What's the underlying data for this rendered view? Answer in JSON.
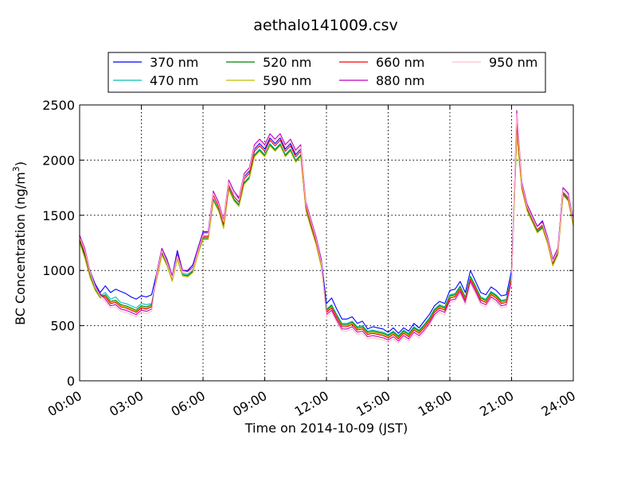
{
  "chart_data": {
    "type": "line",
    "title": "aethalo141009.csv",
    "xlabel": "Time on 2014-10-09 (JST)",
    "ylabel": "BC Concentration (ng/m",
    "ylabel_sup": "3",
    "ylabel_end": ")",
    "xlim": [
      0,
      24
    ],
    "ylim": [
      0,
      2500
    ],
    "x_ticks": [
      0,
      3,
      6,
      9,
      12,
      15,
      18,
      21,
      24
    ],
    "x_tick_labels": [
      "00:00",
      "03:00",
      "06:00",
      "09:00",
      "12:00",
      "15:00",
      "18:00",
      "21:00",
      "24:00"
    ],
    "y_ticks": [
      0,
      500,
      1000,
      1500,
      2000,
      2500
    ],
    "y_tick_labels": [
      "0",
      "500",
      "1000",
      "1500",
      "2000",
      "2500"
    ],
    "grid": true,
    "legend_position": "top-center",
    "x": [
      0.0,
      0.25,
      0.5,
      0.75,
      1.0,
      1.25,
      1.5,
      1.75,
      2.0,
      2.25,
      2.5,
      2.75,
      3.0,
      3.25,
      3.5,
      3.75,
      4.0,
      4.25,
      4.5,
      4.75,
      5.0,
      5.25,
      5.5,
      5.75,
      6.0,
      6.25,
      6.5,
      6.75,
      7.0,
      7.25,
      7.5,
      7.75,
      8.0,
      8.25,
      8.5,
      8.75,
      9.0,
      9.25,
      9.5,
      9.75,
      10.0,
      10.25,
      10.5,
      10.75,
      11.0,
      11.25,
      11.5,
      11.75,
      12.0,
      12.25,
      12.5,
      12.75,
      13.0,
      13.25,
      13.5,
      13.75,
      14.0,
      14.25,
      14.5,
      14.75,
      15.0,
      15.25,
      15.5,
      15.75,
      16.0,
      16.25,
      16.5,
      16.75,
      17.0,
      17.25,
      17.5,
      17.75,
      18.0,
      18.25,
      18.5,
      18.75,
      19.0,
      19.25,
      19.5,
      19.75,
      20.0,
      20.25,
      20.5,
      20.75,
      21.0,
      21.25,
      21.5,
      21.75,
      22.0,
      22.25,
      22.5,
      22.75,
      23.0,
      23.25,
      23.5,
      23.75,
      24.0
    ],
    "series": [
      {
        "name": "370 nm",
        "color": "#0000ff",
        "values": [
          1280,
          1150,
          1000,
          880,
          800,
          860,
          800,
          830,
          810,
          790,
          760,
          740,
          770,
          760,
          780,
          980,
          1200,
          1100,
          950,
          1180,
          1000,
          1000,
          1050,
          1200,
          1350,
          1350,
          1700,
          1600,
          1450,
          1800,
          1700,
          1650,
          1850,
          1900,
          2100,
          2150,
          2100,
          2200,
          2150,
          2200,
          2100,
          2150,
          2050,
          2100,
          1600,
          1450,
          1300,
          1100,
          700,
          750,
          650,
          560,
          560,
          580,
          520,
          540,
          470,
          490,
          480,
          470,
          440,
          480,
          430,
          480,
          450,
          520,
          480,
          540,
          600,
          680,
          720,
          700,
          820,
          830,
          900,
          800,
          1000,
          900,
          800,
          780,
          850,
          820,
          770,
          780,
          1000,
          2300,
          1800,
          1600,
          1500,
          1400,
          1450,
          1300,
          1100,
          1200,
          1750,
          1700,
          1450
        ]
      },
      {
        "name": "470 nm",
        "color": "#00bfbf",
        "values": [
          1260,
          1120,
          960,
          840,
          770,
          800,
          740,
          760,
          710,
          700,
          680,
          660,
          700,
          690,
          700,
          940,
          1160,
          1060,
          920,
          1120,
          970,
          960,
          1000,
          1160,
          1300,
          1300,
          1650,
          1560,
          1400,
          1750,
          1650,
          1600,
          1800,
          1850,
          2050,
          2100,
          2050,
          2150,
          2100,
          2150,
          2050,
          2100,
          2000,
          2050,
          1560,
          1400,
          1250,
          1050,
          650,
          690,
          600,
          520,
          520,
          540,
          490,
          500,
          450,
          460,
          450,
          440,
          420,
          450,
          410,
          460,
          430,
          490,
          460,
          510,
          570,
          650,
          690,
          670,
          780,
          790,
          860,
          760,
          950,
          860,
          760,
          740,
          810,
          780,
          730,
          740,
          950,
          2250,
          1750,
          1560,
          1460,
          1360,
          1400,
          1260,
          1060,
          1160,
          1700,
          1650,
          1420
        ]
      },
      {
        "name": "520 nm",
        "color": "#008000",
        "values": [
          1270,
          1130,
          950,
          830,
          760,
          780,
          720,
          730,
          690,
          680,
          660,
          640,
          680,
          670,
          690,
          930,
          1150,
          1050,
          910,
          1110,
          960,
          950,
          990,
          1150,
          1290,
          1290,
          1640,
          1550,
          1390,
          1740,
          1640,
          1590,
          1790,
          1840,
          2040,
          2090,
          2040,
          2140,
          2090,
          2140,
          2040,
          2090,
          1990,
          2040,
          1550,
          1390,
          1240,
          1040,
          640,
          680,
          590,
          510,
          510,
          530,
          480,
          490,
          440,
          450,
          440,
          430,
          410,
          440,
          400,
          450,
          420,
          480,
          450,
          500,
          560,
          640,
          680,
          660,
          770,
          780,
          850,
          750,
          940,
          850,
          750,
          730,
          800,
          770,
          720,
          730,
          940,
          2240,
          1740,
          1550,
          1450,
          1350,
          1390,
          1250,
          1050,
          1150,
          1690,
          1640,
          1410
        ]
      },
      {
        "name": "590 nm",
        "color": "#bfbf00",
        "values": [
          1250,
          1110,
          940,
          820,
          750,
          770,
          710,
          720,
          680,
          670,
          650,
          630,
          670,
          660,
          680,
          920,
          1140,
          1040,
          900,
          1100,
          950,
          940,
          980,
          1140,
          1280,
          1280,
          1630,
          1540,
          1380,
          1730,
          1630,
          1580,
          1780,
          1830,
          2030,
          2080,
          2030,
          2130,
          2080,
          2130,
          2030,
          2080,
          1980,
          2030,
          1540,
          1380,
          1230,
          1030,
          630,
          670,
          580,
          500,
          500,
          520,
          470,
          480,
          430,
          440,
          430,
          420,
          400,
          430,
          390,
          440,
          410,
          470,
          440,
          490,
          550,
          630,
          670,
          650,
          760,
          770,
          840,
          740,
          930,
          840,
          740,
          720,
          790,
          760,
          710,
          720,
          930,
          2230,
          1730,
          1540,
          1440,
          1340,
          1380,
          1240,
          1040,
          1140,
          1680,
          1630,
          1400
        ]
      },
      {
        "name": "660 nm",
        "color": "#ff0000",
        "values": [
          1290,
          1160,
          980,
          850,
          780,
          760,
          700,
          710,
          670,
          660,
          640,
          620,
          660,
          650,
          670,
          950,
          1170,
          1070,
          930,
          1130,
          980,
          970,
          1010,
          1170,
          1310,
          1310,
          1680,
          1580,
          1420,
          1770,
          1670,
          1620,
          1830,
          1880,
          2080,
          2130,
          2080,
          2180,
          2130,
          2180,
          2080,
          2130,
          2030,
          2080,
          1580,
          1420,
          1260,
          1060,
          620,
          660,
          570,
          490,
          490,
          510,
          460,
          470,
          420,
          430,
          420,
          410,
          390,
          420,
          380,
          430,
          400,
          460,
          430,
          480,
          540,
          620,
          660,
          640,
          750,
          760,
          830,
          730,
          920,
          830,
          730,
          710,
          780,
          750,
          700,
          710,
          920,
          2350,
          1760,
          1570,
          1470,
          1370,
          1410,
          1270,
          1070,
          1170,
          1710,
          1660,
          1440
        ]
      },
      {
        "name": "880 nm",
        "color": "#bf00bf",
        "values": [
          1320,
          1200,
          1000,
          860,
          790,
          740,
          680,
          690,
          650,
          640,
          620,
          600,
          640,
          630,
          650,
          980,
          1200,
          1090,
          950,
          1150,
          1000,
          990,
          1030,
          1190,
          1340,
          1340,
          1720,
          1620,
          1460,
          1820,
          1720,
          1660,
          1880,
          1930,
          2140,
          2190,
          2140,
          2240,
          2190,
          2240,
          2140,
          2190,
          2090,
          2140,
          1620,
          1460,
          1300,
          1090,
          600,
          640,
          550,
          470,
          470,
          490,
          440,
          450,
          400,
          410,
          400,
          390,
          370,
          400,
          360,
          410,
          380,
          440,
          410,
          460,
          520,
          600,
          640,
          620,
          730,
          740,
          810,
          710,
          900,
          810,
          710,
          690,
          760,
          730,
          680,
          690,
          900,
          2450,
          1800,
          1600,
          1500,
          1400,
          1440,
          1300,
          1100,
          1200,
          1750,
          1700,
          1460
        ]
      },
      {
        "name": "950 nm",
        "color": "#ffc0cb",
        "values": [
          1300,
          1180,
          990,
          850,
          770,
          720,
          660,
          670,
          630,
          620,
          600,
          580,
          620,
          610,
          630,
          960,
          1180,
          1070,
          930,
          1130,
          980,
          970,
          1010,
          1170,
          1320,
          1320,
          1700,
          1600,
          1440,
          1800,
          1700,
          1640,
          1860,
          1910,
          2120,
          2170,
          2120,
          2220,
          2170,
          2220,
          2120,
          2170,
          2070,
          2120,
          1600,
          1440,
          1280,
          1070,
          580,
          620,
          530,
          450,
          450,
          470,
          420,
          430,
          380,
          390,
          380,
          370,
          350,
          380,
          340,
          390,
          360,
          420,
          390,
          440,
          500,
          580,
          620,
          600,
          710,
          720,
          790,
          690,
          880,
          790,
          690,
          670,
          740,
          710,
          660,
          670,
          880,
          2420,
          1780,
          1580,
          1480,
          1380,
          1420,
          1280,
          1080,
          1180,
          1730,
          1680,
          1440
        ]
      }
    ]
  }
}
